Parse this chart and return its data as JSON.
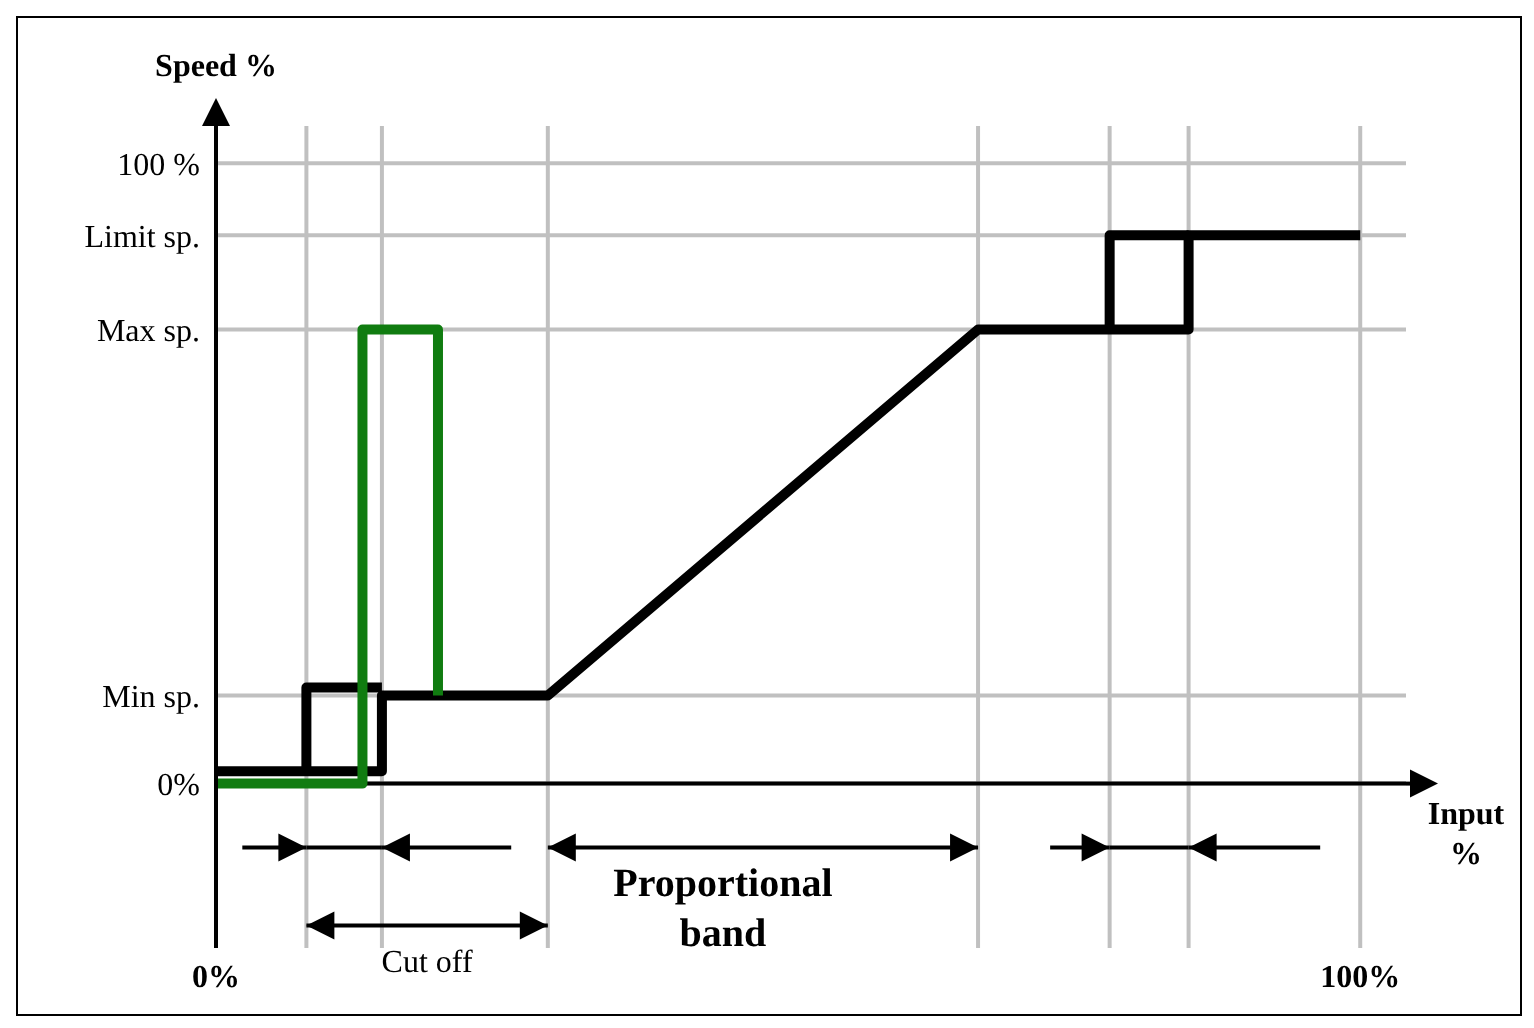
{
  "chart_data": {
    "type": "line",
    "ylabel": "Speed %",
    "xlabel": "Input %",
    "annotations": [
      "Proportional band",
      "Cut off"
    ],
    "xlim": [
      0,
      104
    ],
    "ylim": [
      -26.5,
      106
    ],
    "xticks": [
      {
        "value": 0,
        "label": "0%"
      },
      {
        "value": 7.9,
        "label": null
      },
      {
        "value": 14.5,
        "label": null
      },
      {
        "value": 29,
        "label": null
      },
      {
        "value": 66.6,
        "label": null
      },
      {
        "value": 78.1,
        "label": null
      },
      {
        "value": 85,
        "label": null
      },
      {
        "value": 100,
        "label": "100%"
      }
    ],
    "yticks": [
      {
        "value": 0,
        "label": "0%"
      },
      {
        "value": 14.2,
        "label": "Min sp."
      },
      {
        "value": 73.2,
        "label": "Max sp."
      },
      {
        "value": 88.4,
        "label": "Limit sp."
      },
      {
        "value": 100,
        "label": "100 %"
      }
    ],
    "grid": true,
    "ref_lines": [
      {
        "axis": "y",
        "value": 0,
        "color": "#000000"
      }
    ],
    "series": [
      {
        "color": "#000000",
        "x": [
          0,
          14.5,
          14.5,
          29,
          66.6,
          85,
          85,
          100
        ],
        "values": [
          2,
          2,
          14.2,
          14.2,
          73.2,
          73.2,
          88.4,
          88.4
        ]
      },
      {
        "color": "#000000",
        "x": [
          14.5,
          7.9,
          7.9
        ],
        "values": [
          15.5,
          15.5,
          2
        ]
      },
      {
        "color": "#000000",
        "x": [
          78.1,
          78.1,
          85
        ],
        "values": [
          73.2,
          88.4,
          88.4
        ]
      },
      {
        "color": "#107c10",
        "x": [
          0,
          12.8,
          12.8,
          19.4,
          19.4
        ],
        "values": [
          0,
          0,
          73.2,
          73.2,
          14.2
        ]
      }
    ]
  }
}
